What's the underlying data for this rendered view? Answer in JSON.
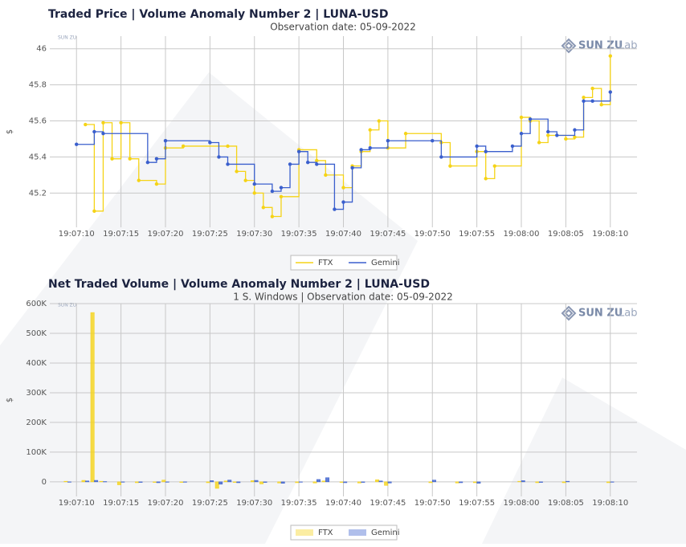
{
  "chart_data": [
    {
      "type": "line",
      "line_shape": "hv",
      "title": "Traded Price | Volume Anomaly Number 2 | LUNA-USD",
      "subtitle": "Observation date: 05-09-2022",
      "y_label": "$",
      "logo": {
        "brand": "SUN ZU",
        "suffix": "Lab"
      },
      "xlim": [
        "19:07:07",
        "19:08:13"
      ],
      "xticks": [
        "19:07:10",
        "19:07:15",
        "19:07:20",
        "19:07:25",
        "19:07:30",
        "19:07:35",
        "19:07:40",
        "19:07:45",
        "19:07:50",
        "19:07:55",
        "19:08:00",
        "19:08:05",
        "19:08:10"
      ],
      "ylim": [
        45.01,
        46.07
      ],
      "yticks": [
        45.2,
        45.4,
        45.6,
        45.8,
        46
      ],
      "grid": true,
      "legend": "bottom",
      "series": [
        {
          "name": "FTX",
          "color": "#f5d316",
          "x": [
            "19:07:11",
            "19:07:12",
            "19:07:13",
            "19:07:14",
            "19:07:15",
            "19:07:16",
            "19:07:17",
            "19:07:19",
            "19:07:20",
            "19:07:22",
            "19:07:27",
            "19:07:28",
            "19:07:29",
            "19:07:30",
            "19:07:31",
            "19:07:32",
            "19:07:33",
            "19:07:35",
            "19:07:37",
            "19:07:38",
            "19:07:40",
            "19:07:41",
            "19:07:42",
            "19:07:43",
            "19:07:44",
            "19:07:45",
            "19:07:47",
            "19:07:51",
            "19:07:52",
            "19:07:55",
            "19:07:56",
            "19:07:57",
            "19:08:00",
            "19:08:01",
            "19:08:02",
            "19:08:03",
            "19:08:05",
            "19:08:06",
            "19:08:07",
            "19:08:08",
            "19:08:09",
            "19:08:10"
          ],
          "values": [
            45.58,
            45.1,
            45.59,
            45.39,
            45.59,
            45.39,
            45.27,
            45.25,
            45.45,
            45.46,
            45.46,
            45.32,
            45.27,
            45.2,
            45.12,
            45.07,
            45.18,
            45.44,
            45.38,
            45.3,
            45.23,
            45.35,
            45.43,
            45.55,
            45.6,
            45.45,
            45.53,
            45.48,
            45.35,
            45.43,
            45.28,
            45.35,
            45.62,
            45.6,
            45.48,
            45.52,
            45.5,
            45.51,
            45.73,
            45.78,
            45.69,
            45.96
          ]
        },
        {
          "name": "Gemini",
          "color": "#3a5fcd",
          "x": [
            "19:07:10",
            "19:07:12",
            "19:07:13",
            "19:07:18",
            "19:07:19",
            "19:07:20",
            "19:07:25",
            "19:07:26",
            "19:07:27",
            "19:07:30",
            "19:07:32",
            "19:07:33",
            "19:07:34",
            "19:07:35",
            "19:07:36",
            "19:07:37",
            "19:07:39",
            "19:07:40",
            "19:07:41",
            "19:07:42",
            "19:07:43",
            "19:07:45",
            "19:07:50",
            "19:07:51",
            "19:07:55",
            "19:07:56",
            "19:07:59",
            "19:08:00",
            "19:08:01",
            "19:08:03",
            "19:08:04",
            "19:08:06",
            "19:08:07",
            "19:08:08",
            "19:08:10"
          ],
          "values": [
            45.47,
            45.54,
            45.53,
            45.37,
            45.39,
            45.49,
            45.48,
            45.4,
            45.36,
            45.25,
            45.21,
            45.23,
            45.36,
            45.43,
            45.37,
            45.36,
            45.11,
            45.15,
            45.34,
            45.44,
            45.45,
            45.49,
            45.49,
            45.4,
            45.46,
            45.43,
            45.46,
            45.53,
            45.61,
            45.54,
            45.52,
            45.55,
            45.71,
            45.71,
            45.76
          ]
        }
      ]
    },
    {
      "type": "bar",
      "title": "Net Traded Volume | Volume Anomaly Number 2 | LUNA-USD",
      "subtitle": "1 S. Windows | Observation date: 05-09-2022",
      "y_label": "$",
      "logo": {
        "brand": "SUN ZU",
        "suffix": "Lab"
      },
      "xlim": [
        "19:07:07",
        "19:08:13"
      ],
      "xticks": [
        "19:07:10",
        "19:07:15",
        "19:07:20",
        "19:07:25",
        "19:07:30",
        "19:07:35",
        "19:07:40",
        "19:07:45",
        "19:07:50",
        "19:07:55",
        "19:08:00",
        "19:08:05",
        "19:08:10"
      ],
      "ylim": [
        -49000,
        600000
      ],
      "yticks": [
        0,
        {
          "value": 100000,
          "label": "100K"
        },
        {
          "value": 200000,
          "label": "200K"
        },
        {
          "value": 300000,
          "label": "300K"
        },
        {
          "value": 400000,
          "label": "400K"
        },
        {
          "value": 500000,
          "label": "500K"
        },
        {
          "value": 600000,
          "label": "600K"
        }
      ],
      "grid": true,
      "legend": "bottom",
      "x": [
        "19:07:09",
        "19:07:11",
        "19:07:12",
        "19:07:13",
        "19:07:15",
        "19:07:17",
        "19:07:19",
        "19:07:20",
        "19:07:22",
        "19:07:25",
        "19:07:26",
        "19:07:27",
        "19:07:28",
        "19:07:30",
        "19:07:31",
        "19:07:33",
        "19:07:35",
        "19:07:37",
        "19:07:38",
        "19:07:40",
        "19:07:42",
        "19:07:44",
        "19:07:45",
        "19:07:50",
        "19:07:53",
        "19:07:55",
        "19:08:00",
        "19:08:02",
        "19:08:05",
        "19:08:10"
      ],
      "series": [
        {
          "name": "FTX",
          "color": "#f5d316",
          "values": [
            2000,
            5000,
            570000,
            2000,
            -10000,
            -3000,
            -2000,
            6000,
            -2000,
            -3000,
            -22000,
            3000,
            -2000,
            4000,
            -7000,
            -4000,
            -3000,
            -4000,
            3000,
            -2000,
            -4000,
            7000,
            -12000,
            -3000,
            -4000,
            -3000,
            2000,
            -3000,
            -3000,
            -3000
          ]
        },
        {
          "name": "Gemini",
          "color": "#3a5fcd",
          "values": [
            -1000,
            3000,
            5000,
            1000,
            0,
            -2000,
            -3000,
            0,
            0,
            4000,
            -8000,
            6000,
            -3000,
            5000,
            -2000,
            -5000,
            0,
            8000,
            14000,
            -3000,
            -2000,
            3000,
            -4000,
            6000,
            -3000,
            -5000,
            4000,
            -2000,
            2000,
            0
          ]
        }
      ]
    }
  ]
}
